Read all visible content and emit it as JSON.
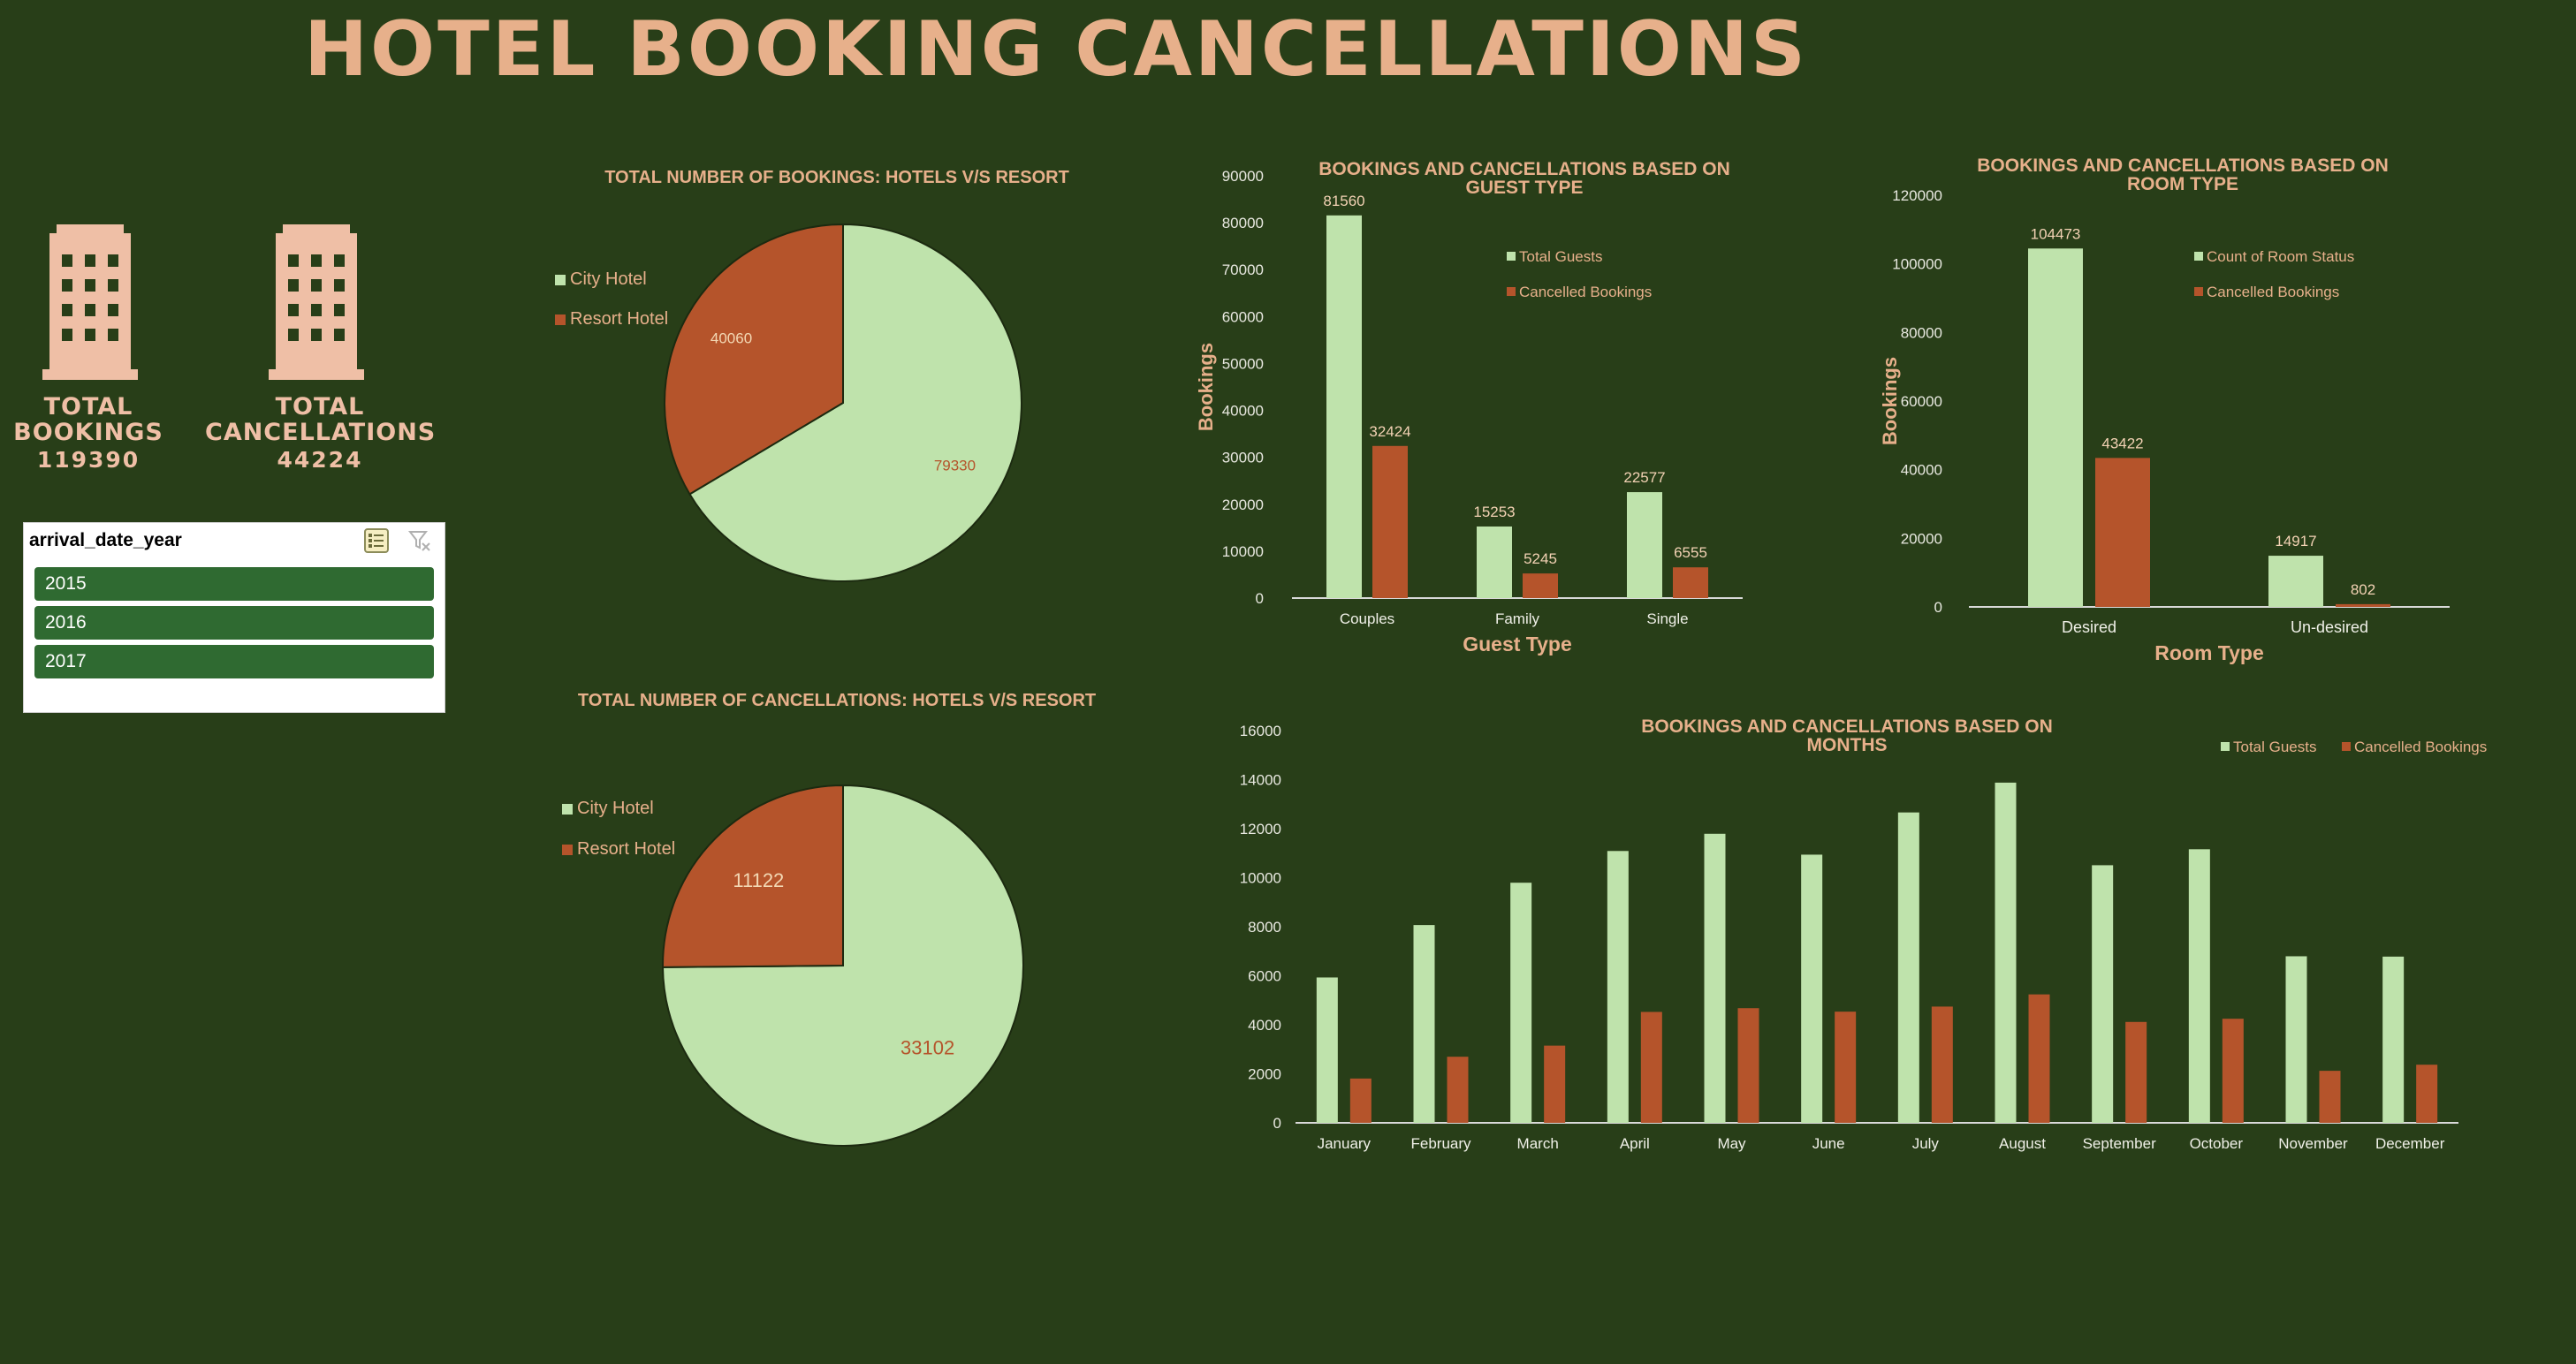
{
  "dashboard": {
    "title": "HOTEL BOOKING CANCELLATIONS",
    "kpis": {
      "bookings_label_1": "TOTAL",
      "bookings_label_2": "BOOKINGS",
      "bookings_value": "119390",
      "cancellations_label_1": "TOTAL",
      "cancellations_label_2": "CANCELLATIONS",
      "cancellations_value": "44224"
    },
    "slicer": {
      "field": "arrival_date_year",
      "items": [
        "2015",
        "2016",
        "2017"
      ]
    },
    "icons": {
      "building": "building-icon",
      "multi_select": "multi-select-icon",
      "clear_filter": "clear-filter-icon"
    },
    "colors": {
      "background": "#283e18",
      "light_green": "#bfe3ac",
      "rust": "#b5542b",
      "peach": "#e7b08b",
      "slicer_item": "#2f6a31"
    }
  },
  "chart_data": [
    {
      "id": "pie_bookings",
      "type": "pie",
      "title": "TOTAL NUMBER OF BOOKINGS: HOTELS V/S RESORT",
      "categories": [
        "City Hotel",
        "Resort Hotel"
      ],
      "values": [
        79330,
        40060
      ],
      "legend": "left"
    },
    {
      "id": "pie_cancellations",
      "type": "pie",
      "title": "TOTAL NUMBER OF CANCELLATIONS: HOTELS V/S RESORT",
      "categories": [
        "City Hotel",
        "Resort Hotel"
      ],
      "values": [
        33102,
        11122
      ],
      "legend": "left"
    },
    {
      "id": "bar_guest_type",
      "type": "bar",
      "title": "BOOKINGS AND CANCELLATIONS BASED ON GUEST TYPE",
      "xlabel": "Guest Type",
      "ylabel": "Bookings",
      "categories": [
        "Couples",
        "Family",
        "Single"
      ],
      "series": [
        {
          "name": "Total Guests",
          "values": [
            81560,
            15253,
            22577
          ]
        },
        {
          "name": "Cancelled Bookings",
          "values": [
            32424,
            5245,
            6555
          ]
        }
      ],
      "ylim": [
        0,
        90000
      ],
      "yticks": [
        "0",
        "10000",
        "20000",
        "30000",
        "40000",
        "50000",
        "60000",
        "70000",
        "80000",
        "90000"
      ],
      "legend": "top-right",
      "grid": false
    },
    {
      "id": "bar_room_type",
      "type": "bar",
      "title": "BOOKINGS AND CANCELLATIONS BASED ON ROOM TYPE",
      "xlabel": "Room Type",
      "ylabel": "Bookings",
      "categories": [
        "Desired",
        "Un-desired"
      ],
      "series": [
        {
          "name": "Count of Room Status",
          "values": [
            104473,
            14917
          ]
        },
        {
          "name": "Cancelled Bookings",
          "values": [
            43422,
            802
          ]
        }
      ],
      "ylim": [
        0,
        120000
      ],
      "yticks": [
        "0",
        "20000",
        "40000",
        "60000",
        "80000",
        "100000",
        "120000"
      ],
      "legend": "top-right",
      "grid": false
    },
    {
      "id": "bar_months",
      "type": "bar",
      "title": "BOOKINGS AND CANCELLATIONS BASED ON MONTHS",
      "categories": [
        "January",
        "February",
        "March",
        "April",
        "May",
        "June",
        "July",
        "August",
        "September",
        "October",
        "November",
        "December"
      ],
      "series": [
        {
          "name": "Total Guests",
          "values": [
            5929,
            8068,
            9794,
            11089,
            11791,
            10939,
            12661,
            13877,
            10508,
            11160,
            6794,
            6780
          ]
        },
        {
          "name": "Cancelled Bookings",
          "values": [
            1807,
            2696,
            3149,
            4524,
            4677,
            4535,
            4742,
            5239,
            4116,
            4246,
            2122,
            2371
          ]
        }
      ],
      "ylim": [
        0,
        16000
      ],
      "yticks": [
        "0",
        "2000",
        "4000",
        "6000",
        "8000",
        "10000",
        "12000",
        "14000",
        "16000"
      ],
      "legend": "top-right",
      "grid": false
    }
  ]
}
